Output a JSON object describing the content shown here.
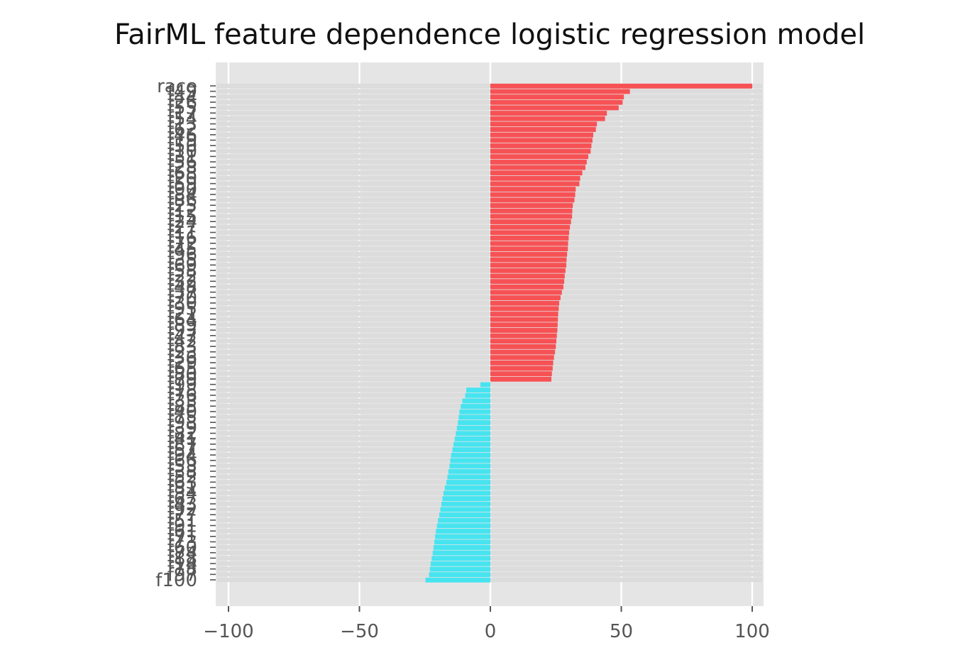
{
  "chart_data": {
    "type": "bar",
    "orientation": "horizontal",
    "title": "FairML feature dependence logistic regression model",
    "xlabel": "",
    "ylabel": "",
    "xlim": [
      -100,
      100
    ],
    "x_ticks": [
      -100,
      -50,
      0,
      50,
      100
    ],
    "x_tick_labels": [
      "−100",
      "−50",
      "0",
      "50",
      "100"
    ],
    "grid": true,
    "background": "#e5e5e5",
    "colors": {
      "positive": "#f65255",
      "negative": "#47e4f0",
      "grid": "#ffffff",
      "background_bar": "#dcdcdc"
    },
    "categories": [
      "race",
      "f49",
      "f44",
      "f26",
      "f55",
      "f17",
      "f54",
      "f13",
      "f62",
      "f46",
      "f19",
      "f50",
      "f10",
      "f31",
      "f56",
      "f28",
      "f68",
      "f20",
      "f59",
      "f90",
      "f84",
      "f86",
      "f25",
      "f12",
      "f15",
      "f24",
      "f27",
      "f11",
      "f16",
      "f72",
      "f45",
      "f96",
      "f35",
      "f69",
      "f58",
      "f22",
      "f32",
      "f48",
      "f37",
      "f70",
      "f30",
      "f95",
      "f21",
      "f64",
      "f89",
      "f93",
      "f47",
      "f42",
      "f83",
      "f23",
      "f36",
      "f29",
      "f65",
      "f80",
      "f79",
      "f99",
      "f18",
      "f76",
      "f33",
      "f85",
      "f40",
      "f75",
      "f98",
      "f39",
      "f82",
      "f41",
      "f87",
      "f57",
      "f94",
      "f66",
      "f53",
      "f38",
      "f52",
      "f63",
      "f81",
      "f34",
      "f67",
      "f43",
      "f92",
      "f77",
      "f51",
      "f91",
      "f61",
      "f71",
      "f73",
      "f60",
      "f74",
      "f88",
      "f14",
      "f78",
      "f97",
      "f100"
    ],
    "values": [
      100,
      53.3,
      51,
      50.5,
      49,
      44.5,
      43.8,
      40.7,
      40.3,
      39.3,
      39,
      38.6,
      38.3,
      37.4,
      36.8,
      36.3,
      35.1,
      34.3,
      34,
      32.6,
      32.4,
      32.1,
      31.5,
      31.3,
      31.2,
      30.8,
      30.4,
      30.1,
      29.9,
      29.7,
      29.6,
      29.3,
      29.1,
      29,
      28.7,
      28.4,
      28.2,
      27.9,
      27.3,
      26.8,
      26.3,
      26.1,
      25.9,
      25.8,
      25.7,
      25.6,
      25.4,
      25.2,
      25,
      24.7,
      24.3,
      24,
      23.8,
      23.5,
      23.3,
      -3.8,
      -9.2,
      -9.6,
      -10.7,
      -11.3,
      -11.8,
      -12.1,
      -12.4,
      -12.8,
      -13.2,
      -13.6,
      -14.1,
      -14.5,
      -15,
      -15.3,
      -15.6,
      -16,
      -16.4,
      -16.8,
      -17.4,
      -17.9,
      -18.3,
      -18.7,
      -19.1,
      -19.5,
      -20,
      -20.4,
      -20.8,
      -21.1,
      -21.4,
      -21.7,
      -22,
      -22.4,
      -22.8,
      -23.1,
      -23.4,
      -24.8
    ]
  }
}
